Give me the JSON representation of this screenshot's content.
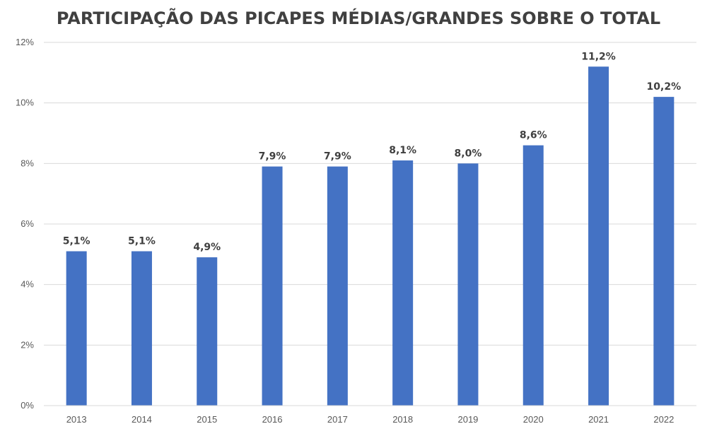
{
  "chart_data": {
    "type": "bar",
    "title": "PARTICIPAÇÃO DAS PICAPES MÉDIAS/GRANDES SOBRE O TOTAL",
    "xlabel": "",
    "ylabel": "",
    "categories": [
      "2013",
      "2014",
      "2015",
      "2016",
      "2017",
      "2018",
      "2019",
      "2020",
      "2021",
      "2022"
    ],
    "values": [
      5.1,
      5.1,
      4.9,
      7.9,
      7.9,
      8.1,
      8.0,
      8.6,
      11.2,
      10.2
    ],
    "data_labels": [
      "5,1%",
      "5,1%",
      "4,9%",
      "7,9%",
      "7,9%",
      "8,1%",
      "8,0%",
      "8,6%",
      "11,2%",
      "10,2%"
    ],
    "y_ticks": [
      0,
      2,
      4,
      6,
      8,
      10,
      12
    ],
    "y_tick_labels": [
      "0%",
      "2%",
      "4%",
      "6%",
      "8%",
      "10%",
      "12%"
    ],
    "ylim": [
      0,
      12
    ],
    "grid": true,
    "legend": "none",
    "bar_color": "#4472C4"
  }
}
